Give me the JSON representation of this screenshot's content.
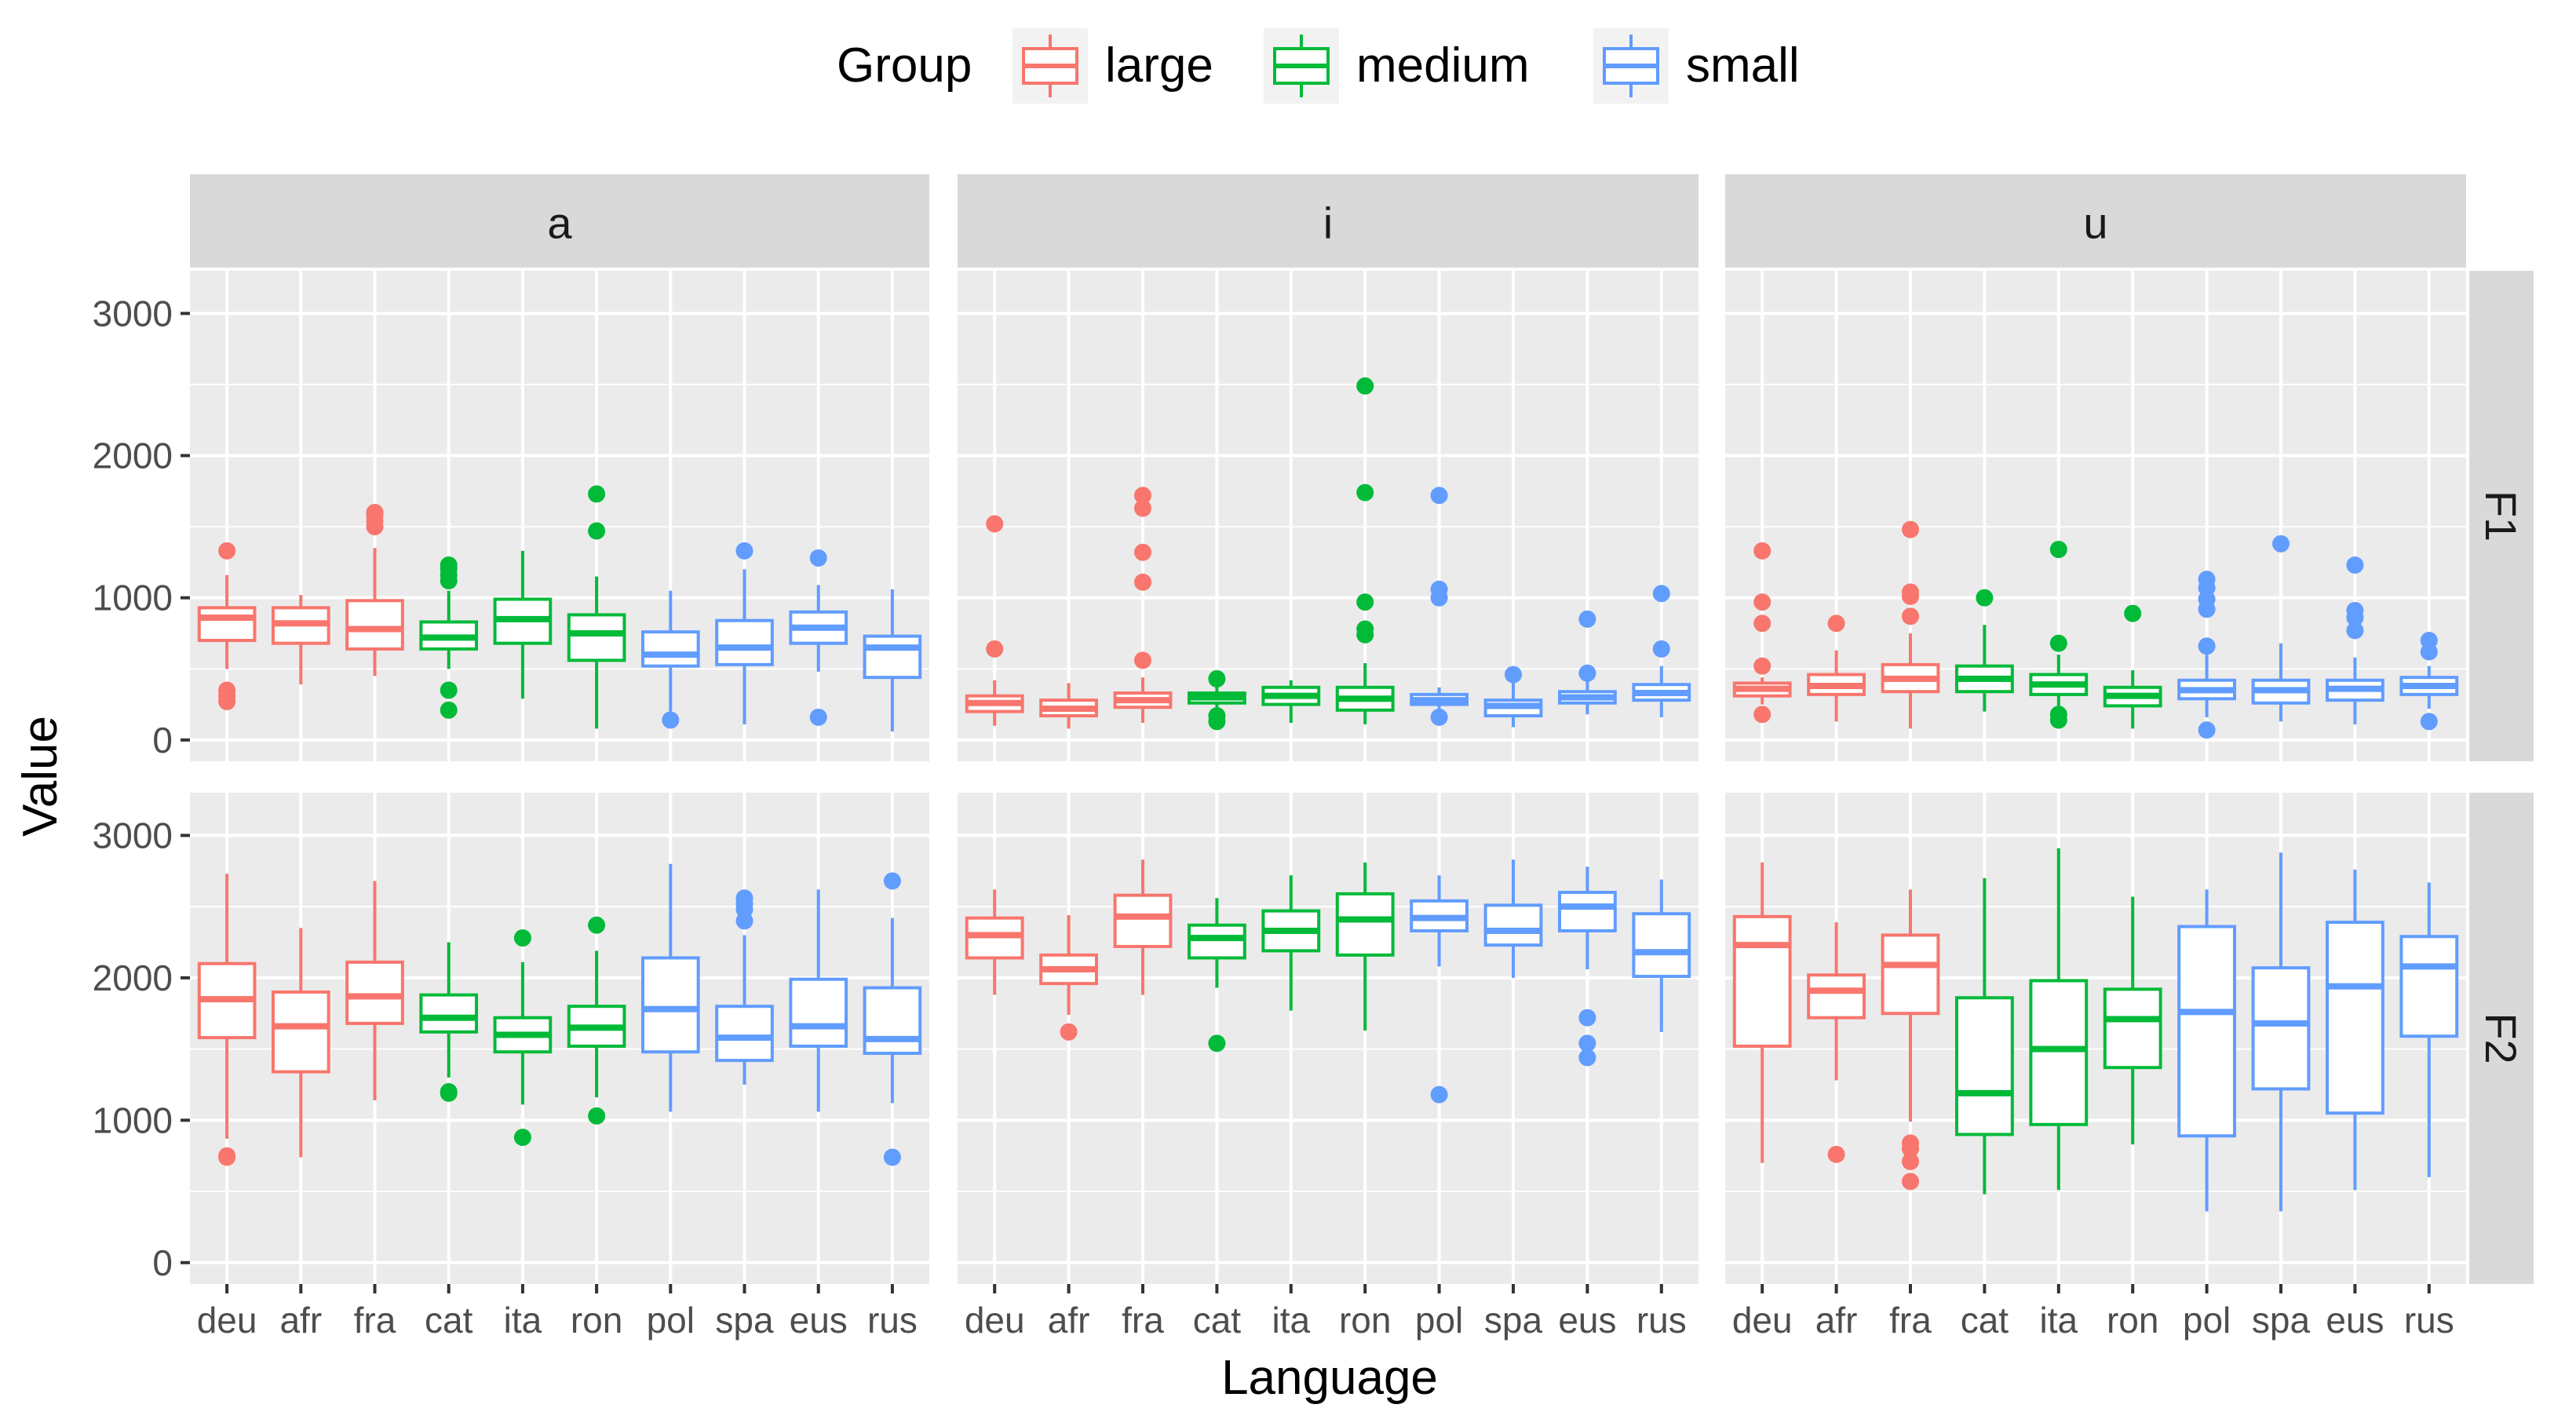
{
  "chart_data": {
    "type": "boxplot",
    "xlabel": "Language",
    "ylabel": "Value",
    "ylim": [
      -150,
      3300
    ],
    "yticks": [
      0,
      1000,
      2000,
      3000
    ],
    "categories": [
      "deu",
      "afr",
      "fra",
      "cat",
      "ita",
      "ron",
      "pol",
      "spa",
      "eus",
      "rus"
    ],
    "category_groups": [
      "large",
      "large",
      "large",
      "medium",
      "medium",
      "medium",
      "small",
      "small",
      "small",
      "small"
    ],
    "legend": {
      "title": "Group",
      "position": "top",
      "entries": [
        {
          "label": "large",
          "color": "#F8766D"
        },
        {
          "label": "medium",
          "color": "#00BA38"
        },
        {
          "label": "small",
          "color": "#619CFF"
        }
      ]
    },
    "facet_columns": [
      "a",
      "i",
      "u"
    ],
    "facet_rows": [
      "F1",
      "F2"
    ],
    "panels": [
      {
        "vowel": "a",
        "formant": "F1",
        "boxes": [
          {
            "lang": "deu",
            "group": "large",
            "lower": 500,
            "q1": 700,
            "median": 860,
            "q3": 930,
            "upper": 1160,
            "outliers": [
              1330,
              350,
              310,
              270
            ]
          },
          {
            "lang": "afr",
            "group": "large",
            "lower": 390,
            "q1": 680,
            "median": 820,
            "q3": 930,
            "upper": 1020,
            "outliers": []
          },
          {
            "lang": "fra",
            "group": "large",
            "lower": 450,
            "q1": 640,
            "median": 780,
            "q3": 980,
            "upper": 1350,
            "outliers": [
              1500,
              1540,
              1580,
              1600
            ]
          },
          {
            "lang": "cat",
            "group": "medium",
            "lower": 500,
            "q1": 640,
            "median": 720,
            "q3": 830,
            "upper": 1050,
            "outliers": [
              1230,
              1200,
              1160,
              1120,
              350,
              210
            ]
          },
          {
            "lang": "ita",
            "group": "medium",
            "lower": 290,
            "q1": 680,
            "median": 850,
            "q3": 990,
            "upper": 1330,
            "outliers": []
          },
          {
            "lang": "ron",
            "group": "medium",
            "lower": 80,
            "q1": 560,
            "median": 750,
            "q3": 880,
            "upper": 1150,
            "outliers": [
              1730,
              1470
            ]
          },
          {
            "lang": "pol",
            "group": "small",
            "lower": 200,
            "q1": 520,
            "median": 600,
            "q3": 760,
            "upper": 1050,
            "outliers": [
              140
            ]
          },
          {
            "lang": "spa",
            "group": "small",
            "lower": 110,
            "q1": 530,
            "median": 650,
            "q3": 840,
            "upper": 1200,
            "outliers": [
              1330
            ]
          },
          {
            "lang": "eus",
            "group": "small",
            "lower": 480,
            "q1": 680,
            "median": 790,
            "q3": 900,
            "upper": 1090,
            "outliers": [
              1280,
              160
            ]
          },
          {
            "lang": "rus",
            "group": "small",
            "lower": 60,
            "q1": 440,
            "median": 650,
            "q3": 730,
            "upper": 1060,
            "outliers": []
          }
        ]
      },
      {
        "vowel": "i",
        "formant": "F1",
        "boxes": [
          {
            "lang": "deu",
            "group": "large",
            "lower": 100,
            "q1": 200,
            "median": 260,
            "q3": 310,
            "upper": 420,
            "outliers": [
              1520,
              640
            ]
          },
          {
            "lang": "afr",
            "group": "large",
            "lower": 80,
            "q1": 170,
            "median": 220,
            "q3": 280,
            "upper": 400,
            "outliers": []
          },
          {
            "lang": "fra",
            "group": "large",
            "lower": 120,
            "q1": 230,
            "median": 280,
            "q3": 330,
            "upper": 440,
            "outliers": [
              1720,
              1630,
              1320,
              1110,
              560
            ]
          },
          {
            "lang": "cat",
            "group": "medium",
            "lower": 180,
            "q1": 260,
            "median": 300,
            "q3": 330,
            "upper": 400,
            "outliers": [
              430,
              170,
              130
            ]
          },
          {
            "lang": "ita",
            "group": "medium",
            "lower": 120,
            "q1": 250,
            "median": 310,
            "q3": 370,
            "upper": 420,
            "outliers": []
          },
          {
            "lang": "ron",
            "group": "medium",
            "lower": 110,
            "q1": 210,
            "median": 290,
            "q3": 370,
            "upper": 540,
            "outliers": [
              2490,
              1740,
              970,
              780,
              740
            ]
          },
          {
            "lang": "pol",
            "group": "small",
            "lower": 200,
            "q1": 250,
            "median": 280,
            "q3": 320,
            "upper": 370,
            "outliers": [
              1720,
              1060,
              1000,
              160
            ]
          },
          {
            "lang": "spa",
            "group": "small",
            "lower": 90,
            "q1": 170,
            "median": 240,
            "q3": 280,
            "upper": 420,
            "outliers": [
              460
            ]
          },
          {
            "lang": "eus",
            "group": "small",
            "lower": 180,
            "q1": 260,
            "median": 300,
            "q3": 340,
            "upper": 410,
            "outliers": [
              850,
              470
            ]
          },
          {
            "lang": "rus",
            "group": "small",
            "lower": 160,
            "q1": 280,
            "median": 330,
            "q3": 390,
            "upper": 520,
            "outliers": [
              1030,
              640
            ]
          }
        ]
      },
      {
        "vowel": "u",
        "formant": "F1",
        "boxes": [
          {
            "lang": "deu",
            "group": "large",
            "lower": 250,
            "q1": 310,
            "median": 360,
            "q3": 400,
            "upper": 440,
            "outliers": [
              1330,
              970,
              820,
              520,
              180
            ]
          },
          {
            "lang": "afr",
            "group": "large",
            "lower": 130,
            "q1": 320,
            "median": 380,
            "q3": 460,
            "upper": 630,
            "outliers": [
              820
            ]
          },
          {
            "lang": "fra",
            "group": "large",
            "lower": 80,
            "q1": 340,
            "median": 430,
            "q3": 530,
            "upper": 750,
            "outliers": [
              1480,
              1040,
              1010,
              870
            ]
          },
          {
            "lang": "cat",
            "group": "medium",
            "lower": 200,
            "q1": 340,
            "median": 430,
            "q3": 520,
            "upper": 810,
            "outliers": [
              1000
            ]
          },
          {
            "lang": "ita",
            "group": "medium",
            "lower": 200,
            "q1": 320,
            "median": 390,
            "q3": 460,
            "upper": 600,
            "outliers": [
              1340,
              680,
              180,
              140
            ]
          },
          {
            "lang": "ron",
            "group": "medium",
            "lower": 80,
            "q1": 240,
            "median": 310,
            "q3": 370,
            "upper": 490,
            "outliers": [
              890
            ]
          },
          {
            "lang": "pol",
            "group": "small",
            "lower": 160,
            "q1": 290,
            "median": 350,
            "q3": 420,
            "upper": 600,
            "outliers": [
              1130,
              1070,
              990,
              920,
              660,
              70
            ]
          },
          {
            "lang": "spa",
            "group": "small",
            "lower": 130,
            "q1": 260,
            "median": 350,
            "q3": 420,
            "upper": 680,
            "outliers": [
              1380
            ]
          },
          {
            "lang": "eus",
            "group": "small",
            "lower": 110,
            "q1": 280,
            "median": 360,
            "q3": 420,
            "upper": 580,
            "outliers": [
              1230,
              910,
              860,
              770
            ]
          },
          {
            "lang": "rus",
            "group": "small",
            "lower": 220,
            "q1": 320,
            "median": 380,
            "q3": 440,
            "upper": 520,
            "outliers": [
              700,
              620,
              130
            ]
          }
        ]
      },
      {
        "vowel": "a",
        "formant": "F2",
        "boxes": [
          {
            "lang": "deu",
            "group": "large",
            "lower": 870,
            "q1": 1580,
            "median": 1850,
            "q3": 2100,
            "upper": 2730,
            "outliers": [
              750,
              740
            ]
          },
          {
            "lang": "afr",
            "group": "large",
            "lower": 740,
            "q1": 1340,
            "median": 1660,
            "q3": 1900,
            "upper": 2350,
            "outliers": []
          },
          {
            "lang": "fra",
            "group": "large",
            "lower": 1140,
            "q1": 1680,
            "median": 1870,
            "q3": 2110,
            "upper": 2680,
            "outliers": []
          },
          {
            "lang": "cat",
            "group": "medium",
            "lower": 1300,
            "q1": 1620,
            "median": 1720,
            "q3": 1880,
            "upper": 2250,
            "outliers": [
              1200,
              1190
            ]
          },
          {
            "lang": "ita",
            "group": "medium",
            "lower": 1110,
            "q1": 1480,
            "median": 1600,
            "q3": 1720,
            "upper": 2110,
            "outliers": [
              2280,
              880
            ]
          },
          {
            "lang": "ron",
            "group": "medium",
            "lower": 1160,
            "q1": 1520,
            "median": 1650,
            "q3": 1800,
            "upper": 2190,
            "outliers": [
              2370,
              1030
            ]
          },
          {
            "lang": "pol",
            "group": "small",
            "lower": 1060,
            "q1": 1480,
            "median": 1780,
            "q3": 2140,
            "upper": 2800,
            "outliers": []
          },
          {
            "lang": "spa",
            "group": "small",
            "lower": 1250,
            "q1": 1420,
            "median": 1580,
            "q3": 1800,
            "upper": 2300,
            "outliers": [
              2560,
              2520,
              2480,
              2400
            ]
          },
          {
            "lang": "eus",
            "group": "small",
            "lower": 1060,
            "q1": 1520,
            "median": 1660,
            "q3": 1990,
            "upper": 2620,
            "outliers": []
          },
          {
            "lang": "rus",
            "group": "small",
            "lower": 1120,
            "q1": 1470,
            "median": 1570,
            "q3": 1930,
            "upper": 2420,
            "outliers": [
              2680,
              740
            ]
          }
        ]
      },
      {
        "vowel": "i",
        "formant": "F2",
        "boxes": [
          {
            "lang": "deu",
            "group": "large",
            "lower": 1880,
            "q1": 2140,
            "median": 2300,
            "q3": 2420,
            "upper": 2620,
            "outliers": []
          },
          {
            "lang": "afr",
            "group": "large",
            "lower": 1740,
            "q1": 1960,
            "median": 2060,
            "q3": 2160,
            "upper": 2440,
            "outliers": [
              1620
            ]
          },
          {
            "lang": "fra",
            "group": "large",
            "lower": 1880,
            "q1": 2220,
            "median": 2430,
            "q3": 2580,
            "upper": 2830,
            "outliers": []
          },
          {
            "lang": "cat",
            "group": "medium",
            "lower": 1930,
            "q1": 2140,
            "median": 2280,
            "q3": 2370,
            "upper": 2560,
            "outliers": [
              1540
            ]
          },
          {
            "lang": "ita",
            "group": "medium",
            "lower": 1770,
            "q1": 2190,
            "median": 2330,
            "q3": 2470,
            "upper": 2720,
            "outliers": []
          },
          {
            "lang": "ron",
            "group": "medium",
            "lower": 1630,
            "q1": 2160,
            "median": 2410,
            "q3": 2590,
            "upper": 2810,
            "outliers": []
          },
          {
            "lang": "pol",
            "group": "small",
            "lower": 2080,
            "q1": 2330,
            "median": 2420,
            "q3": 2540,
            "upper": 2720,
            "outliers": [
              1180
            ]
          },
          {
            "lang": "spa",
            "group": "small",
            "lower": 2000,
            "q1": 2230,
            "median": 2330,
            "q3": 2510,
            "upper": 2830,
            "outliers": []
          },
          {
            "lang": "eus",
            "group": "small",
            "lower": 2060,
            "q1": 2330,
            "median": 2500,
            "q3": 2600,
            "upper": 2780,
            "outliers": [
              1720,
              1540,
              1440
            ]
          },
          {
            "lang": "rus",
            "group": "small",
            "lower": 1620,
            "q1": 2010,
            "median": 2180,
            "q3": 2450,
            "upper": 2690,
            "outliers": []
          }
        ]
      },
      {
        "vowel": "u",
        "formant": "F2",
        "boxes": [
          {
            "lang": "deu",
            "group": "large",
            "lower": 700,
            "q1": 1520,
            "median": 2230,
            "q3": 2430,
            "upper": 2810,
            "outliers": []
          },
          {
            "lang": "afr",
            "group": "large",
            "lower": 1280,
            "q1": 1720,
            "median": 1910,
            "q3": 2020,
            "upper": 2390,
            "outliers": [
              760
            ]
          },
          {
            "lang": "fra",
            "group": "large",
            "lower": 990,
            "q1": 1750,
            "median": 2090,
            "q3": 2300,
            "upper": 2620,
            "outliers": [
              840,
              800,
              710,
              570
            ]
          },
          {
            "lang": "cat",
            "group": "medium",
            "lower": 480,
            "q1": 900,
            "median": 1190,
            "q3": 1860,
            "upper": 2700,
            "outliers": []
          },
          {
            "lang": "ita",
            "group": "medium",
            "lower": 510,
            "q1": 970,
            "median": 1500,
            "q3": 1980,
            "upper": 2910,
            "outliers": []
          },
          {
            "lang": "ron",
            "group": "medium",
            "lower": 830,
            "q1": 1370,
            "median": 1710,
            "q3": 1920,
            "upper": 2570,
            "outliers": []
          },
          {
            "lang": "pol",
            "group": "small",
            "lower": 360,
            "q1": 890,
            "median": 1760,
            "q3": 2360,
            "upper": 2620,
            "outliers": []
          },
          {
            "lang": "spa",
            "group": "small",
            "lower": 360,
            "q1": 1220,
            "median": 1680,
            "q3": 2070,
            "upper": 2880,
            "outliers": []
          },
          {
            "lang": "eus",
            "group": "small",
            "lower": 510,
            "q1": 1050,
            "median": 1940,
            "q3": 2390,
            "upper": 2760,
            "outliers": []
          },
          {
            "lang": "rus",
            "group": "small",
            "lower": 600,
            "q1": 1590,
            "median": 2080,
            "q3": 2290,
            "upper": 2670,
            "outliers": []
          }
        ]
      }
    ]
  }
}
